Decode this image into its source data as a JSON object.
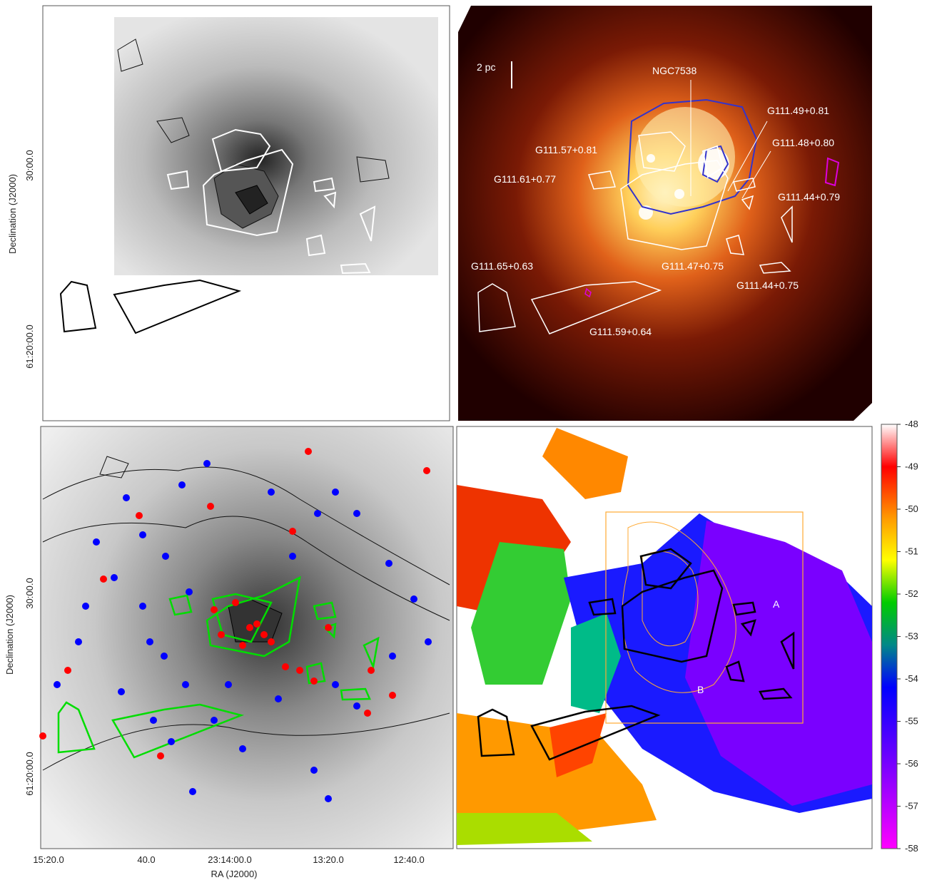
{
  "figure": {
    "ra_axis_label": "RA (J2000)",
    "dec_axis_label": "Declination (J2000)",
    "ra_ticks": [
      "15:20.0",
      "40.0",
      "23:14:00.0",
      "13:20.0",
      "12:40.0"
    ],
    "dec_ticks": [
      "30:00.0",
      "61:20:00.0"
    ],
    "scale_bar": "2 pc",
    "top_right_labels": [
      "NGC7538",
      "G111.49+0.81",
      "G111.48+0.80",
      "G111.57+0.81",
      "G111.61+0.77",
      "G111.44+0.79",
      "G111.65+0.63",
      "G111.47+0.75",
      "G111.44+0.75",
      "G111.59+0.64"
    ],
    "region_letters": [
      "A",
      "B"
    ],
    "colorbar_ticks": [
      "-48",
      "-49",
      "-50",
      "-51",
      "-52",
      "-53",
      "-54",
      "-55",
      "-56",
      "-57",
      "-58"
    ],
    "colorbar_colors": [
      "#ffffff",
      "#ff0000",
      "#ff9900",
      "#ffff00",
      "#00cc00",
      "#008888",
      "#0000ff",
      "#7700ff",
      "#ff00ff"
    ],
    "point_colors": {
      "red": "#ff0000",
      "blue": "#0000ff",
      "green_outline": "#00dd00"
    }
  },
  "chart_data": [
    {
      "type": "heatmap",
      "panel": "top-left",
      "description_colormap": "grayscale with black contours and white region outlines"
    },
    {
      "type": "heatmap",
      "panel": "top-right",
      "colormap": "hot",
      "annotations": [
        "NGC7538",
        "G111.49+0.81",
        "G111.48+0.80",
        "G111.57+0.81",
        "G111.61+0.77",
        "G111.44+0.79",
        "G111.65+0.63",
        "G111.47+0.75",
        "G111.44+0.75",
        "G111.59+0.64"
      ],
      "scale_bar": "2 pc"
    },
    {
      "type": "scatter",
      "panel": "bottom-left",
      "series": [
        {
          "color": "red"
        },
        {
          "color": "blue"
        }
      ],
      "xlabel": "RA (J2000)",
      "ylabel": "Declination (J2000)",
      "xticks": [
        "15:20.0",
        "40.0",
        "23:14:00.0",
        "13:20.0",
        "12:40.0"
      ],
      "yticks": [
        "30:00.0",
        "61:20:00.0"
      ]
    },
    {
      "type": "heatmap",
      "panel": "bottom-right",
      "colorbar": {
        "min": -58,
        "max": -48,
        "ticks": [
          -48,
          -49,
          -50,
          -51,
          -52,
          -53,
          -54,
          -55,
          -56,
          -57,
          -58
        ]
      },
      "labels": [
        "A",
        "B"
      ]
    }
  ]
}
